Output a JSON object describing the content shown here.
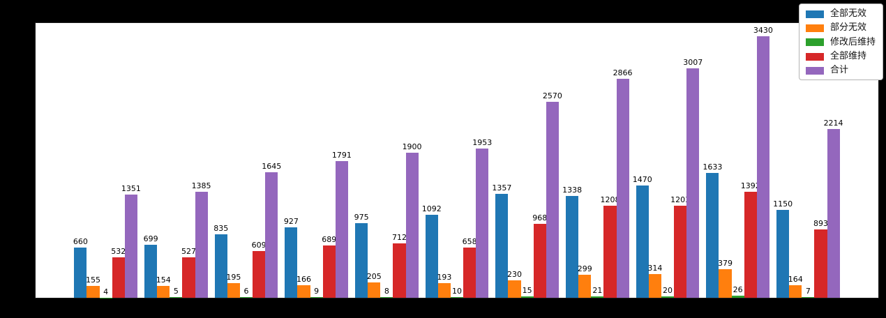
{
  "figure": {
    "background_color": "#000000",
    "plot_background_color": "#ffffff"
  },
  "chart_data": {
    "type": "bar",
    "categories": [
      "",
      "",
      "",
      "",
      "",
      "",
      "",
      "",
      "",
      "",
      ""
    ],
    "series": [
      {
        "name": "全部无效",
        "color": "#1f77b4",
        "values": [
          660,
          699,
          835,
          927,
          975,
          1092,
          1357,
          1338,
          1470,
          1633,
          1150
        ]
      },
      {
        "name": "部分无效",
        "color": "#ff7f0e",
        "values": [
          155,
          154,
          195,
          166,
          205,
          193,
          230,
          299,
          314,
          379,
          164
        ]
      },
      {
        "name": "修改后维持",
        "color": "#2ca02c",
        "values": [
          4,
          5,
          6,
          9,
          8,
          10,
          15,
          21,
          20,
          26,
          7
        ]
      },
      {
        "name": "全部维持",
        "color": "#d62728",
        "values": [
          532,
          527,
          609,
          689,
          712,
          658,
          968,
          1208,
          1203,
          1392,
          893
        ]
      },
      {
        "name": "合计",
        "color": "#9467bd",
        "values": [
          1351,
          1385,
          1645,
          1791,
          1900,
          1953,
          2570,
          2866,
          3007,
          3430,
          2214
        ]
      }
    ],
    "title": "",
    "xlabel": "",
    "ylabel": "",
    "ylim": [
      0,
      3600
    ],
    "bar_labels": true,
    "grid": false,
    "legend_position": "upper right"
  }
}
